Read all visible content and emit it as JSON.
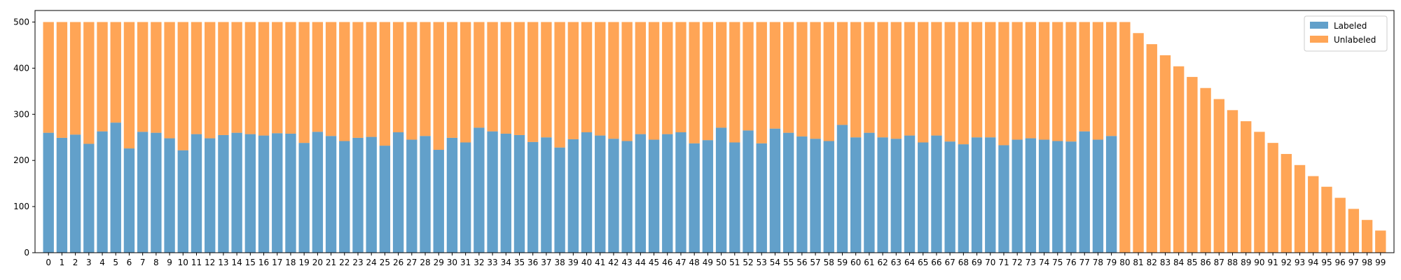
{
  "chart_data": {
    "type": "bar",
    "stacked": true,
    "categories": [
      "0",
      "1",
      "2",
      "3",
      "4",
      "5",
      "6",
      "7",
      "8",
      "9",
      "10",
      "11",
      "12",
      "13",
      "14",
      "15",
      "16",
      "17",
      "18",
      "19",
      "20",
      "21",
      "22",
      "23",
      "24",
      "25",
      "26",
      "27",
      "28",
      "29",
      "30",
      "31",
      "32",
      "33",
      "34",
      "35",
      "36",
      "37",
      "38",
      "39",
      "40",
      "41",
      "42",
      "43",
      "44",
      "45",
      "46",
      "47",
      "48",
      "49",
      "50",
      "51",
      "52",
      "53",
      "54",
      "55",
      "56",
      "57",
      "58",
      "59",
      "60",
      "61",
      "62",
      "63",
      "64",
      "65",
      "66",
      "67",
      "68",
      "69",
      "70",
      "71",
      "72",
      "73",
      "74",
      "75",
      "76",
      "77",
      "78",
      "79",
      "80",
      "81",
      "82",
      "83",
      "84",
      "85",
      "86",
      "87",
      "88",
      "89",
      "90",
      "91",
      "92",
      "93",
      "94",
      "95",
      "96",
      "97",
      "98",
      "99"
    ],
    "series": [
      {
        "name": "Labeled",
        "color": "#1f77b4",
        "values": [
          260,
          249,
          256,
          236,
          263,
          282,
          226,
          262,
          260,
          248,
          222,
          257,
          248,
          255,
          260,
          257,
          254,
          259,
          258,
          238,
          262,
          253,
          242,
          249,
          251,
          232,
          261,
          245,
          253,
          223,
          249,
          239,
          271,
          263,
          258,
          255,
          240,
          250,
          228,
          246,
          261,
          254,
          247,
          242,
          257,
          245,
          257,
          261,
          237,
          244,
          271,
          239,
          265,
          237,
          269,
          260,
          252,
          247,
          242,
          277,
          250,
          260,
          250,
          247,
          254,
          239,
          254,
          241,
          235,
          250,
          250,
          233,
          245,
          248,
          245,
          242,
          241,
          263,
          245,
          253,
          0,
          0,
          0,
          0,
          0,
          0,
          0,
          0,
          0,
          0,
          0,
          0,
          0,
          0,
          0,
          0,
          0,
          0,
          0,
          0
        ]
      },
      {
        "name": "Unlabeled",
        "color": "#ff7f0e",
        "values": [
          240,
          251,
          244,
          264,
          237,
          218,
          274,
          238,
          240,
          252,
          278,
          243,
          252,
          245,
          240,
          243,
          246,
          241,
          242,
          262,
          238,
          247,
          258,
          251,
          249,
          268,
          239,
          255,
          247,
          277,
          251,
          261,
          229,
          237,
          242,
          245,
          260,
          250,
          272,
          254,
          239,
          246,
          253,
          258,
          243,
          255,
          243,
          239,
          263,
          256,
          229,
          261,
          235,
          263,
          231,
          240,
          248,
          253,
          258,
          223,
          250,
          240,
          250,
          253,
          246,
          261,
          246,
          259,
          265,
          250,
          250,
          267,
          255,
          252,
          255,
          258,
          259,
          237,
          255,
          247,
          500,
          476,
          452,
          428,
          404,
          381,
          357,
          333,
          309,
          285,
          262,
          238,
          214,
          190,
          166,
          143,
          119,
          95,
          71,
          48
        ]
      }
    ],
    "ylim": [
      0,
      525
    ],
    "yticks": [
      0,
      100,
      200,
      300,
      400,
      500
    ],
    "bar_alpha": 0.7,
    "grid": false,
    "legend": {
      "placement": "top-right",
      "entries": [
        "Labeled",
        "Unlabeled"
      ]
    },
    "title": "",
    "xlabel": "",
    "ylabel": ""
  }
}
